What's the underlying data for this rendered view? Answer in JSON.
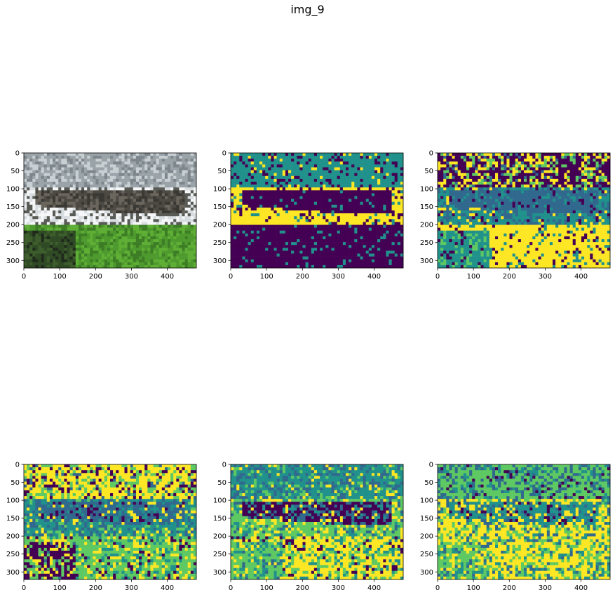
{
  "suptitle": "img_9",
  "colors": {
    "viridis": [
      "#440154",
      "#31688e",
      "#21918c",
      "#5ec962",
      "#fde725"
    ],
    "viridis6": [
      "#440154",
      "#414487",
      "#2a788e",
      "#22a884",
      "#7ad151",
      "#fde725"
    ]
  },
  "chart_data": [
    {
      "type": "image",
      "content": "photograph",
      "xlim": [
        0,
        481
      ],
      "ylim": [
        321,
        0
      ],
      "xticks": [
        0,
        100,
        200,
        300,
        400
      ],
      "yticks": [
        0,
        50,
        100,
        150,
        200,
        250,
        300
      ]
    },
    {
      "type": "heatmap",
      "cmap": "viridis",
      "clusters": 3,
      "xlim": [
        0,
        481
      ],
      "ylim": [
        321,
        0
      ],
      "xticks": [
        0,
        100,
        200,
        300,
        400
      ],
      "yticks": [
        0,
        50,
        100,
        150,
        200,
        250,
        300
      ]
    },
    {
      "type": "heatmap",
      "cmap": "viridis",
      "clusters": 4,
      "xlim": [
        0,
        481
      ],
      "ylim": [
        321,
        0
      ],
      "xticks": [
        0,
        100,
        200,
        300,
        400
      ],
      "yticks": [
        0,
        50,
        100,
        150,
        200,
        250,
        300
      ]
    },
    {
      "type": "heatmap",
      "cmap": "viridis",
      "clusters": 5,
      "xlim": [
        0,
        481
      ],
      "ylim": [
        321,
        0
      ],
      "xticks": [
        0,
        100,
        200,
        300,
        400
      ],
      "yticks": [
        0,
        50,
        100,
        150,
        200,
        250,
        300
      ]
    },
    {
      "type": "heatmap",
      "cmap": "viridis",
      "clusters": 6,
      "xlim": [
        0,
        481
      ],
      "ylim": [
        321,
        0
      ],
      "xticks": [
        0,
        100,
        200,
        300,
        400
      ],
      "yticks": [
        0,
        50,
        100,
        150,
        200,
        250,
        300
      ]
    },
    {
      "type": "heatmap",
      "cmap": "viridis",
      "clusters": 7,
      "xlim": [
        0,
        481
      ],
      "ylim": [
        321,
        0
      ],
      "xticks": [
        0,
        100,
        200,
        300,
        400
      ],
      "yticks": [
        0,
        50,
        100,
        150,
        200,
        250,
        300
      ]
    }
  ]
}
